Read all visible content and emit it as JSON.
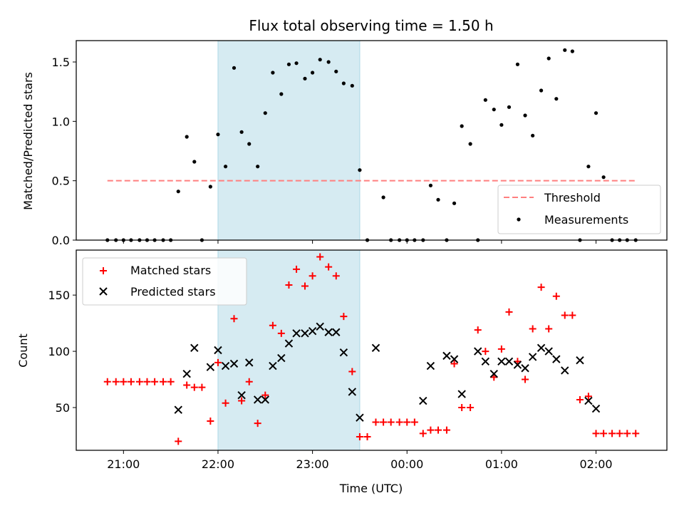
{
  "title": "Flux total observing time = 1.50 h",
  "colors": {
    "shade": "#add8e6",
    "threshold": "#ff7f7f",
    "measurements": "#000000",
    "matched": "#ff0000",
    "predicted": "#000000"
  },
  "chart_data": [
    {
      "type": "scatter",
      "panel": "top",
      "title": "Flux total observing time = 1.50 h",
      "xlabel": "",
      "ylabel": "Matched/Predicted stars",
      "x_unit": "hours since 21:00 UTC",
      "xlim": [
        -0.5,
        5.75
      ],
      "ylim": [
        0,
        1.68
      ],
      "yticks": [
        0.0,
        0.5,
        1.0,
        1.5
      ],
      "ytick_labels": [
        "0.0",
        "0.5",
        "1.0",
        "1.5"
      ],
      "xticks": [
        0,
        1,
        2,
        3,
        4,
        5
      ],
      "shaded_region": [
        1.0,
        2.5
      ],
      "legend_position": "lower-right",
      "series": [
        {
          "name": "Threshold",
          "style": "dashed-line",
          "x": [
            -0.17,
            5.42
          ],
          "y": [
            0.5,
            0.5
          ]
        },
        {
          "name": "Measurements",
          "style": "dot",
          "x": [
            -0.17,
            -0.08,
            0.0,
            0.08,
            0.17,
            0.25,
            0.33,
            0.42,
            0.5,
            0.58,
            0.67,
            0.75,
            0.83,
            0.92,
            1.0,
            1.08,
            1.17,
            1.25,
            1.33,
            1.42,
            1.5,
            1.58,
            1.67,
            1.75,
            1.83,
            1.92,
            2.0,
            2.08,
            2.17,
            2.25,
            2.33,
            2.42,
            2.5,
            2.58,
            2.75,
            2.83,
            2.92,
            3.0,
            3.08,
            3.17,
            3.25,
            3.33,
            3.42,
            3.5,
            3.58,
            3.67,
            3.75,
            3.83,
            3.92,
            4.0,
            4.08,
            4.17,
            4.25,
            4.33,
            4.42,
            4.5,
            4.58,
            4.67,
            4.75,
            4.83,
            4.92,
            5.0,
            5.08,
            5.17,
            5.25,
            5.33,
            5.42
          ],
          "y": [
            0,
            0,
            0,
            0,
            0,
            0,
            0,
            0,
            0,
            0.41,
            0.87,
            0.66,
            0,
            0.45,
            0.89,
            0.62,
            1.45,
            0.91,
            0.81,
            0.62,
            1.07,
            1.41,
            1.23,
            1.48,
            1.49,
            1.36,
            1.41,
            1.52,
            1.5,
            1.42,
            1.32,
            1.3,
            0.59,
            0,
            0.36,
            0,
            0,
            0,
            0,
            0,
            0.46,
            0.34,
            0,
            0.31,
            0.96,
            0.81,
            0,
            1.18,
            1.1,
            0.97,
            1.12,
            1.48,
            1.05,
            0.88,
            1.26,
            1.53,
            1.19,
            1.6,
            1.59,
            0,
            0.62,
            1.07,
            0.53,
            0,
            0,
            0,
            0
          ]
        }
      ]
    },
    {
      "type": "scatter",
      "panel": "bottom",
      "xlabel": "Time (UTC)",
      "ylabel": "Count",
      "x_unit": "hours since 21:00 UTC",
      "xlim": [
        -0.5,
        5.75
      ],
      "ylim": [
        12,
        190
      ],
      "yticks": [
        50,
        100,
        150
      ],
      "ytick_labels": [
        "50",
        "100",
        "150"
      ],
      "xticks": [
        0,
        1,
        2,
        3,
        4,
        5
      ],
      "xtick_labels": [
        "21:00",
        "22:00",
        "23:00",
        "00:00",
        "01:00",
        "02:00"
      ],
      "shaded_region": [
        1.0,
        2.5
      ],
      "legend_position": "upper-left",
      "series": [
        {
          "name": "Matched stars",
          "marker": "plus",
          "x": [
            -0.17,
            -0.08,
            0.0,
            0.08,
            0.17,
            0.25,
            0.33,
            0.42,
            0.5,
            0.58,
            0.67,
            0.75,
            0.83,
            0.92,
            1.0,
            1.08,
            1.17,
            1.25,
            1.33,
            1.42,
            1.5,
            1.58,
            1.67,
            1.75,
            1.83,
            1.92,
            2.0,
            2.08,
            2.17,
            2.25,
            2.33,
            2.42,
            2.5,
            2.58,
            2.67,
            2.75,
            2.83,
            2.92,
            3.0,
            3.08,
            3.17,
            3.25,
            3.33,
            3.42,
            3.5,
            3.58,
            3.67,
            3.75,
            3.83,
            3.92,
            4.0,
            4.08,
            4.17,
            4.25,
            4.33,
            4.42,
            4.5,
            4.58,
            4.67,
            4.75,
            4.83,
            4.92,
            5.0,
            5.08,
            5.17,
            5.25,
            5.33,
            5.42
          ],
          "y": [
            73,
            73,
            73,
            73,
            73,
            73,
            73,
            73,
            73,
            20,
            70,
            68,
            68,
            38,
            90,
            54,
            129,
            56,
            73,
            36,
            61,
            123,
            116,
            159,
            173,
            158,
            167,
            184,
            175,
            167,
            131,
            82,
            24,
            24,
            37,
            37,
            37,
            37,
            37,
            37,
            27,
            30,
            30,
            30,
            89,
            50,
            50,
            119,
            100,
            77,
            102,
            135,
            91,
            75,
            120,
            157,
            120,
            149,
            132,
            132,
            57,
            60,
            27,
            27,
            27,
            27,
            27,
            27
          ]
        },
        {
          "name": "Predicted stars",
          "marker": "x",
          "x": [
            0.58,
            0.67,
            0.75,
            0.92,
            1.0,
            1.08,
            1.17,
            1.25,
            1.33,
            1.42,
            1.5,
            1.58,
            1.67,
            1.75,
            1.83,
            1.92,
            2.0,
            2.08,
            2.17,
            2.25,
            2.33,
            2.42,
            2.5,
            2.67,
            3.17,
            3.25,
            3.42,
            3.5,
            3.58,
            3.75,
            3.83,
            3.92,
            4.0,
            4.08,
            4.17,
            4.25,
            4.33,
            4.42,
            4.5,
            4.58,
            4.67,
            4.83,
            4.92,
            5.0
          ],
          "y": [
            48,
            80,
            103,
            86,
            101,
            87,
            89,
            61,
            90,
            57,
            57,
            87,
            94,
            107,
            116,
            116,
            118,
            122,
            117,
            117,
            99,
            64,
            41,
            103,
            56,
            87,
            96,
            93,
            62,
            100,
            91,
            80,
            91,
            91,
            88,
            85,
            95,
            103,
            100,
            93,
            83,
            92,
            56,
            49
          ]
        }
      ]
    }
  ]
}
